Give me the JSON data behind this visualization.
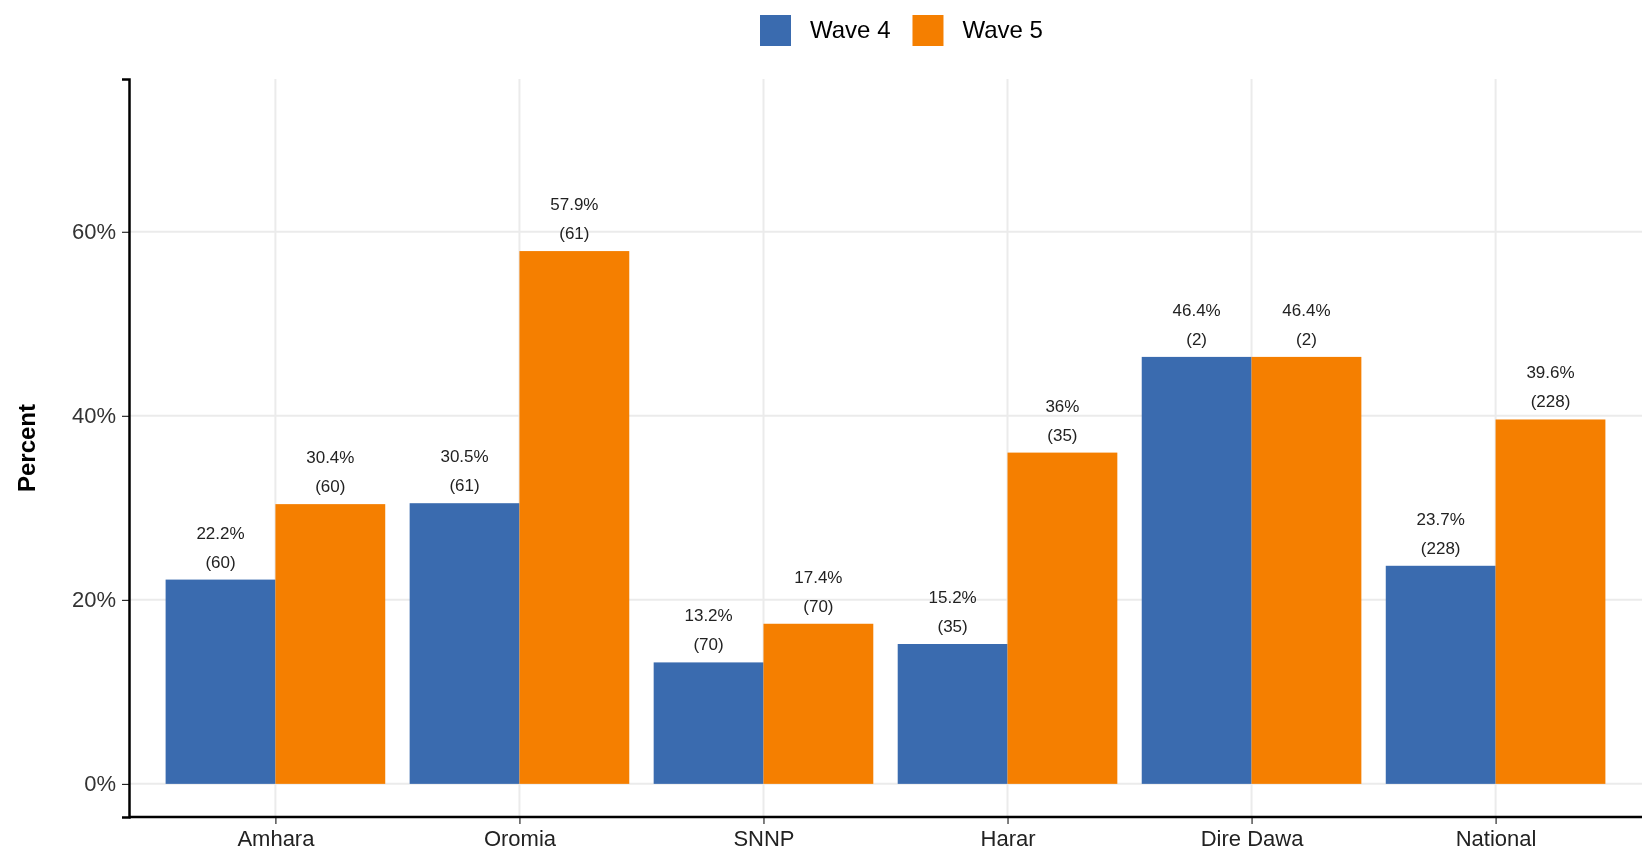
{
  "chart_data": {
    "type": "bar",
    "ylabel": "Percent",
    "categories": [
      "Amhara",
      "Oromia",
      "SNNP",
      "Harar",
      "Dire Dawa",
      "National"
    ],
    "series": [
      {
        "name": "Wave 4",
        "color": "#3a6baf",
        "values": [
          22.2,
          30.5,
          13.2,
          15.2,
          46.4,
          23.7
        ],
        "value_labels": [
          "22.2%\n(60)",
          "30.5%\n(61)",
          "13.2%\n(70)",
          "15.2%\n(35)",
          "46.4%\n(2)",
          "23.7%\n(228)"
        ]
      },
      {
        "name": "Wave 5",
        "color": "#f57f00",
        "values": [
          30.4,
          57.9,
          17.4,
          36,
          46.4,
          39.6
        ],
        "value_labels": [
          "30.4%\n(60)",
          "57.9%\n(61)",
          "17.4%\n(70)",
          "36%\n(35)",
          "46.4%\n(2)",
          "39.6%\n(228)"
        ]
      }
    ],
    "ylim": [
      -3.6,
      76.6
    ],
    "yticks": [
      {
        "value": 0,
        "label": "0%"
      },
      {
        "value": 20,
        "label": "20%"
      },
      {
        "value": 40,
        "label": "40%"
      },
      {
        "value": 60,
        "label": "60%"
      }
    ],
    "grid": true,
    "legend": "top"
  }
}
